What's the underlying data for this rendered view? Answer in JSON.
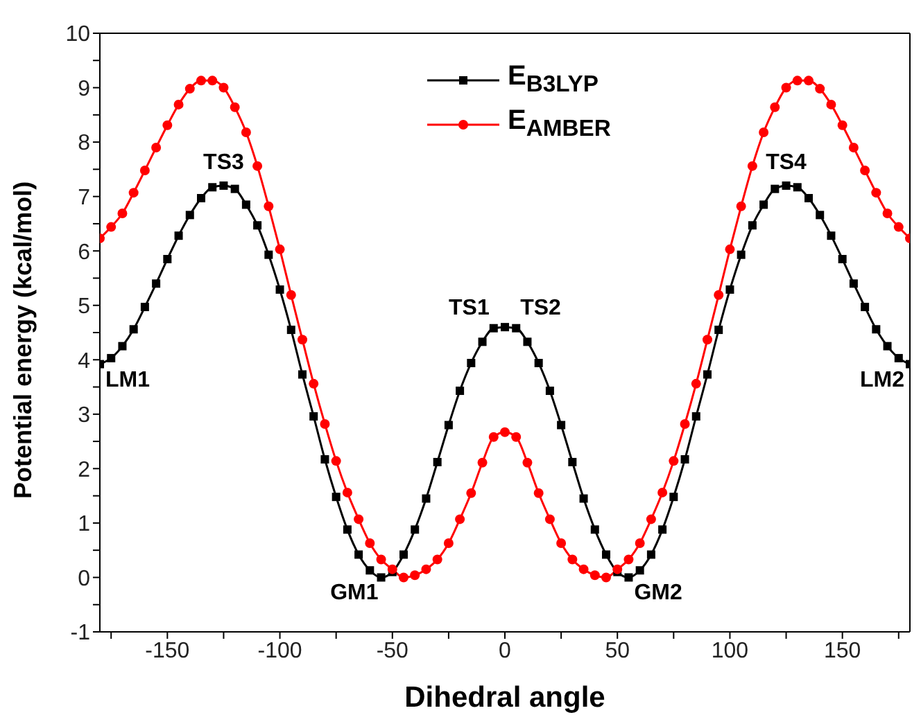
{
  "chart_data": {
    "type": "line",
    "xlabel": "Dihedral angle",
    "ylabel": "Potential energy (kcal/mol)",
    "x": [
      -180,
      -175,
      -170,
      -165,
      -160,
      -155,
      -150,
      -145,
      -140,
      -135,
      -130,
      -125,
      -120,
      -115,
      -110,
      -105,
      -100,
      -95,
      -90,
      -85,
      -80,
      -75,
      -70,
      -65,
      -60,
      -55,
      -50,
      -45,
      -40,
      -35,
      -30,
      -25,
      -20,
      -15,
      -10,
      -5,
      0,
      5,
      10,
      15,
      20,
      25,
      30,
      35,
      40,
      45,
      50,
      55,
      60,
      65,
      70,
      75,
      80,
      85,
      90,
      95,
      100,
      105,
      110,
      115,
      120,
      125,
      130,
      135,
      140,
      145,
      150,
      155,
      160,
      165,
      170,
      175,
      180
    ],
    "series": [
      {
        "name": "E$_{B3LYP}$",
        "color": "#000000",
        "marker": "square",
        "values": [
          3.92,
          4.03,
          4.25,
          4.56,
          4.97,
          5.4,
          5.85,
          6.28,
          6.66,
          6.97,
          7.17,
          7.2,
          7.14,
          6.85,
          6.47,
          5.93,
          5.29,
          4.55,
          3.73,
          2.96,
          2.17,
          1.48,
          0.88,
          0.42,
          0.13,
          0.0,
          0.1,
          0.42,
          0.88,
          1.45,
          2.12,
          2.8,
          3.43,
          3.94,
          4.33,
          4.58,
          4.6,
          4.58,
          4.33,
          3.94,
          3.43,
          2.8,
          2.12,
          1.45,
          0.88,
          0.42,
          0.1,
          0.0,
          0.13,
          0.42,
          0.88,
          1.48,
          2.17,
          2.96,
          3.73,
          4.55,
          5.29,
          5.93,
          6.47,
          6.85,
          7.14,
          7.2,
          7.17,
          6.97,
          6.66,
          6.28,
          5.85,
          5.4,
          4.97,
          4.56,
          4.25,
          4.03,
          3.92
        ]
      },
      {
        "name": "E$_{AMBER}$",
        "color": "#ff0000",
        "marker": "circle",
        "values": [
          6.23,
          6.44,
          6.69,
          7.07,
          7.48,
          7.9,
          8.31,
          8.69,
          8.98,
          9.13,
          9.13,
          9.0,
          8.64,
          8.18,
          7.56,
          6.82,
          6.03,
          5.19,
          4.37,
          3.56,
          2.82,
          2.14,
          1.56,
          1.07,
          0.63,
          0.33,
          0.15,
          0.0,
          0.04,
          0.15,
          0.33,
          0.63,
          1.07,
          1.55,
          2.11,
          2.58,
          2.67,
          2.58,
          2.11,
          1.55,
          1.07,
          0.63,
          0.33,
          0.15,
          0.04,
          0.0,
          0.15,
          0.33,
          0.63,
          1.07,
          1.56,
          2.14,
          2.82,
          3.56,
          4.37,
          5.19,
          6.03,
          6.82,
          7.56,
          8.18,
          8.64,
          9.0,
          9.13,
          9.13,
          8.98,
          8.69,
          8.31,
          7.9,
          7.48,
          7.07,
          6.69,
          6.44,
          6.23
        ]
      }
    ],
    "xlim": [
      -180,
      180
    ],
    "xticks": [
      {
        "value": -175,
        "label": null
      },
      -150,
      {
        "value": -125,
        "label": null
      },
      -100,
      {
        "value": -75,
        "label": null
      },
      -50,
      {
        "value": -25,
        "label": null
      },
      0,
      {
        "value": 25,
        "label": null
      },
      50,
      {
        "value": 75,
        "label": null
      },
      100,
      {
        "value": 125,
        "label": null
      },
      150,
      {
        "value": 175,
        "label": null
      }
    ],
    "ylim": [
      -1,
      10
    ],
    "yticks": [
      -1,
      {
        "value": -0.5,
        "label": null
      },
      0,
      {
        "value": 0.5,
        "label": null
      },
      1,
      {
        "value": 1.5,
        "label": null
      },
      2,
      {
        "value": 2.5,
        "label": null
      },
      3,
      {
        "value": 3.5,
        "label": null
      },
      4,
      {
        "value": 4.5,
        "label": null
      },
      5,
      {
        "value": 5.5,
        "label": null
      },
      6,
      {
        "value": 6.5,
        "label": null
      },
      7,
      {
        "value": 7.5,
        "label": null
      },
      8,
      {
        "value": 8.5,
        "label": null
      },
      9,
      {
        "value": 9.5,
        "label": null
      },
      10
    ],
    "grid": false,
    "legend": "top",
    "line_style": "solid",
    "annotations": [
      {
        "text": "LM1",
        "x": -180,
        "y": 3.92
      },
      {
        "text": "TS3",
        "x": -125,
        "y": 7.2
      },
      {
        "text": "GM1",
        "x": -55,
        "y": 0.0
      },
      {
        "text": "TS1",
        "x": -5,
        "y": 4.58
      },
      {
        "text": "TS2",
        "x": 5,
        "y": 4.58
      },
      {
        "text": "GM2",
        "x": 55,
        "y": 0.0
      },
      {
        "text": "TS4",
        "x": 125,
        "y": 7.2
      },
      {
        "text": "LM2",
        "x": 180,
        "y": 3.92
      }
    ]
  }
}
